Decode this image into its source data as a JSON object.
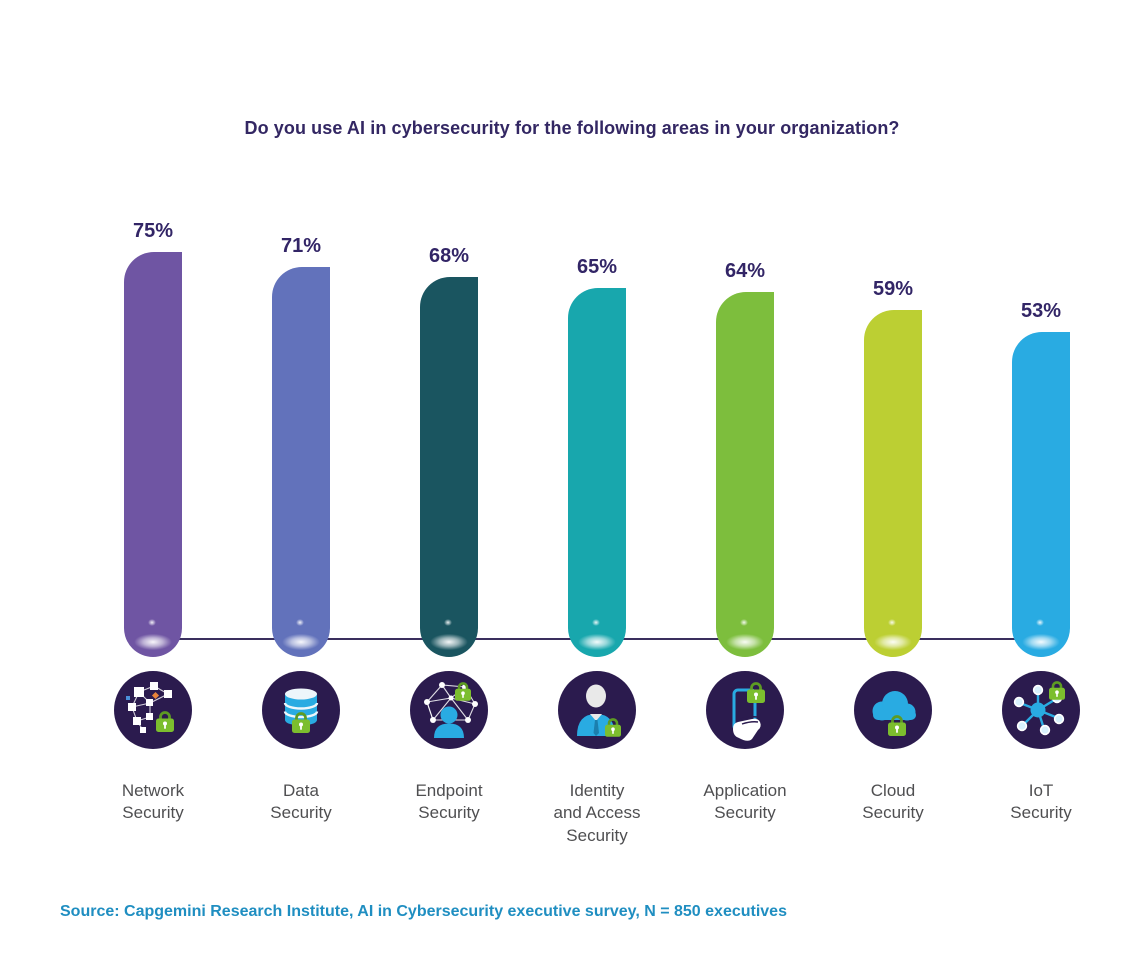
{
  "title": "Do you use AI in cybersecurity for the following areas in your organization?",
  "source_note": "Source: Capgemini Research Institute, AI in Cybersecurity executive survey, N = 850 executives",
  "chart_data": {
    "type": "bar",
    "orientation": "vertical",
    "title": "Do you use AI in cybersecurity for the following areas in your organization?",
    "categories": [
      "Network Security",
      "Data Security",
      "Endpoint Security",
      "Identity and Access Security",
      "Application Security",
      "Cloud Security",
      "IoT Security"
    ],
    "category_display_lines": [
      "Network\nSecurity",
      "Data\nSecurity",
      "Endpoint\nSecurity",
      "Identity\nand Access\nSecurity",
      "Application\nSecurity",
      "Cloud\nSecurity",
      "IoT\nSecurity"
    ],
    "values": [
      75,
      71,
      68,
      65,
      64,
      59,
      53
    ],
    "value_labels": [
      "75%",
      "71%",
      "68%",
      "65%",
      "64%",
      "59%",
      "53%"
    ],
    "unit": "%",
    "ylim": [
      0,
      100
    ],
    "grid": false,
    "legend": false,
    "bar_colors": [
      "#6F55A3",
      "#6272BB",
      "#1A5560",
      "#18A7AD",
      "#7DBE3D",
      "#BCCF33",
      "#29ABE2"
    ],
    "icon_names": [
      "network-security-icon",
      "data-security-icon",
      "endpoint-security-icon",
      "identity-access-security-icon",
      "application-security-icon",
      "cloud-security-icon",
      "iot-security-icon"
    ]
  },
  "colors": {
    "background": "#FFFFFF",
    "title_text": "#332763",
    "value_label_text": "#322566",
    "category_label_text": "#4F4F51",
    "source_text": "#1F8EC1",
    "axis_line": "#3A2F5E",
    "icon_circle_bg": "#2B1B4E",
    "icon_accent_blue": "#29ABE2",
    "icon_lock_green": "#7CBE2E",
    "icon_lock_green_dark": "#5D9B23"
  }
}
